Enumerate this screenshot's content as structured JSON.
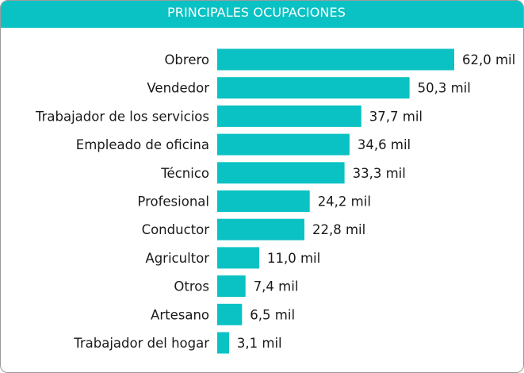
{
  "colors": {
    "accent": "#0ac2c3",
    "bar": "#0ac2c3",
    "text": "#1a1a1a"
  },
  "chart_data": {
    "type": "bar",
    "orientation": "horizontal",
    "title": "PRINCIPALES OCUPACIONES",
    "xlabel": "",
    "ylabel": "",
    "unit_suffix": " mil",
    "grid": false,
    "legend": "none",
    "categories": [
      "Obrero",
      "Vendedor",
      "Trabajador de los servicios",
      "Empleado de oficina",
      "Técnico",
      "Profesional",
      "Conductor",
      "Agricultor",
      "Otros",
      "Artesano",
      "Trabajador del hogar"
    ],
    "values": [
      62.0,
      50.3,
      37.7,
      34.6,
      33.3,
      24.2,
      22.8,
      11.0,
      7.4,
      6.5,
      3.1
    ],
    "value_labels": [
      "62,0 mil",
      "50,3 mil",
      "37,7 mil",
      "34,6 mil",
      "33,3 mil",
      "24,2 mil",
      "22,8 mil",
      "11,0 mil",
      "7,4 mil",
      "6,5 mil",
      "3,1 mil"
    ],
    "xlim": [
      0,
      62.0
    ]
  }
}
